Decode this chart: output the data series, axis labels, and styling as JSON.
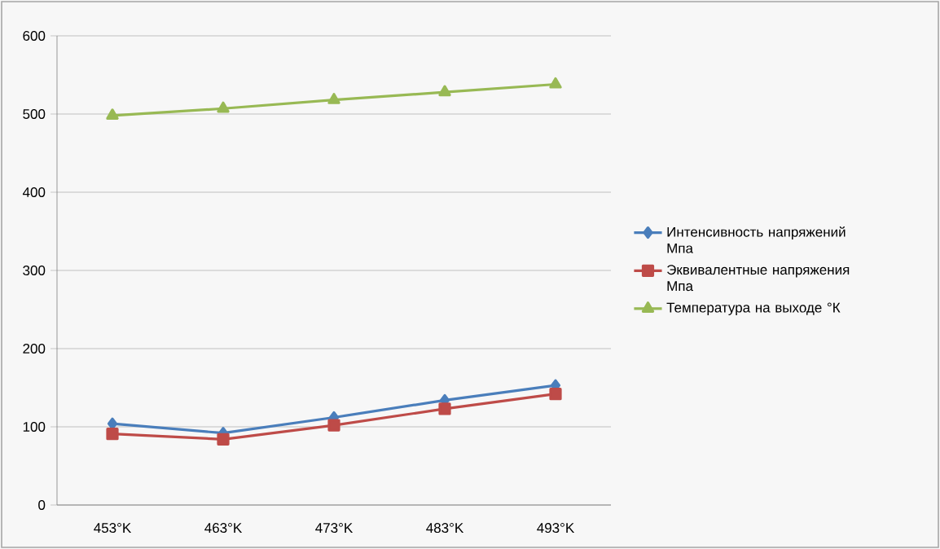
{
  "chart_data": {
    "type": "line",
    "categories": [
      "453°K",
      "463°K",
      "473°K",
      "483°K",
      "493°K"
    ],
    "series": [
      {
        "name": "Интенсивность напряжений Мпа",
        "color": "#4a7ebb",
        "marker": "diamond",
        "values": [
          104,
          92,
          112,
          134,
          153
        ]
      },
      {
        "name": "Эквивалентные напряжения Мпа",
        "color": "#be4b48",
        "marker": "square",
        "values": [
          91,
          84,
          102,
          123,
          142
        ]
      },
      {
        "name": "Температура на выходе °К",
        "color": "#98b954",
        "marker": "triangle",
        "values": [
          498,
          507,
          518,
          528,
          538
        ]
      }
    ],
    "ylim": [
      0,
      600
    ],
    "yticks": [
      0,
      100,
      200,
      300,
      400,
      500,
      600
    ],
    "grid": "y",
    "legend": "right",
    "line_style": "solid"
  }
}
